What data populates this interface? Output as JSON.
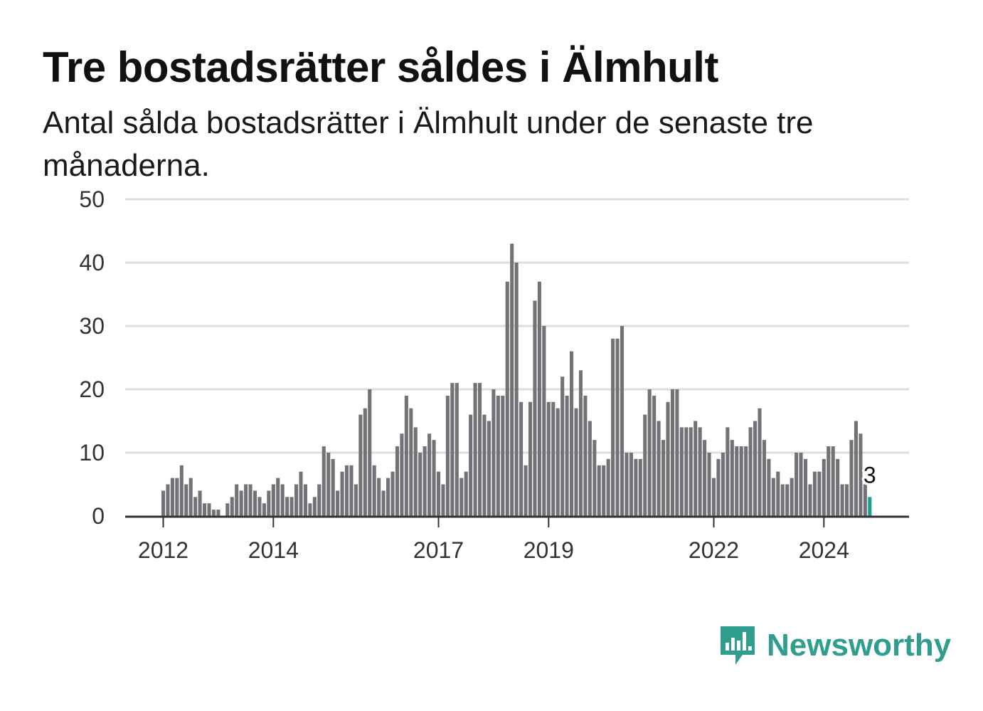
{
  "title": "Tre bostadsrätter såldes i Älmhult",
  "subtitle": "Antal sålda bostadsrätter i Älmhult under de senaste tre månaderna.",
  "brand": {
    "name": "Newsworthy",
    "icon": "newsworthy-logo-icon",
    "color": "#2f9e8f"
  },
  "colors": {
    "bar": "#737277",
    "highlight": "#1f9e93",
    "grid": "#dddddd",
    "axis": "#333333"
  },
  "chart_data": {
    "type": "bar",
    "ylim": [
      0,
      50
    ],
    "yticks": [
      0,
      10,
      20,
      30,
      40,
      50
    ],
    "xticks": [
      {
        "label": "2012",
        "index": 0
      },
      {
        "label": "2014",
        "index": 24
      },
      {
        "label": "2017",
        "index": 60
      },
      {
        "label": "2019",
        "index": 84
      },
      {
        "label": "2022",
        "index": 120
      },
      {
        "label": "2024",
        "index": 144
      }
    ],
    "values": [
      4,
      5,
      6,
      6,
      8,
      5,
      6,
      3,
      4,
      2,
      2,
      1,
      1,
      0,
      2,
      3,
      5,
      4,
      5,
      5,
      4,
      3,
      2,
      4,
      5,
      6,
      5,
      3,
      3,
      5,
      7,
      5,
      2,
      3,
      5,
      11,
      10,
      9,
      4,
      7,
      8,
      8,
      5,
      16,
      17,
      20,
      8,
      6,
      4,
      6,
      7,
      11,
      13,
      19,
      17,
      14,
      10,
      11,
      13,
      12,
      7,
      5,
      19,
      21,
      21,
      6,
      7,
      16,
      21,
      21,
      16,
      15,
      20,
      19,
      19,
      37,
      43,
      40,
      18,
      8,
      18,
      34,
      37,
      30,
      18,
      18,
      17,
      22,
      19,
      26,
      17,
      23,
      19,
      15,
      12,
      8,
      8,
      9,
      28,
      28,
      30,
      10,
      10,
      9,
      9,
      16,
      20,
      19,
      15,
      12,
      18,
      20,
      20,
      14,
      14,
      14,
      15,
      14,
      12,
      10,
      6,
      9,
      10,
      14,
      12,
      11,
      11,
      11,
      14,
      15,
      17,
      12,
      9,
      6,
      7,
      5,
      5,
      6,
      10,
      10,
      9,
      5,
      7,
      7,
      9,
      11,
      11,
      9,
      5,
      5,
      12,
      15,
      13,
      5,
      3
    ],
    "highlight_last": true,
    "last_value_label": "3"
  }
}
